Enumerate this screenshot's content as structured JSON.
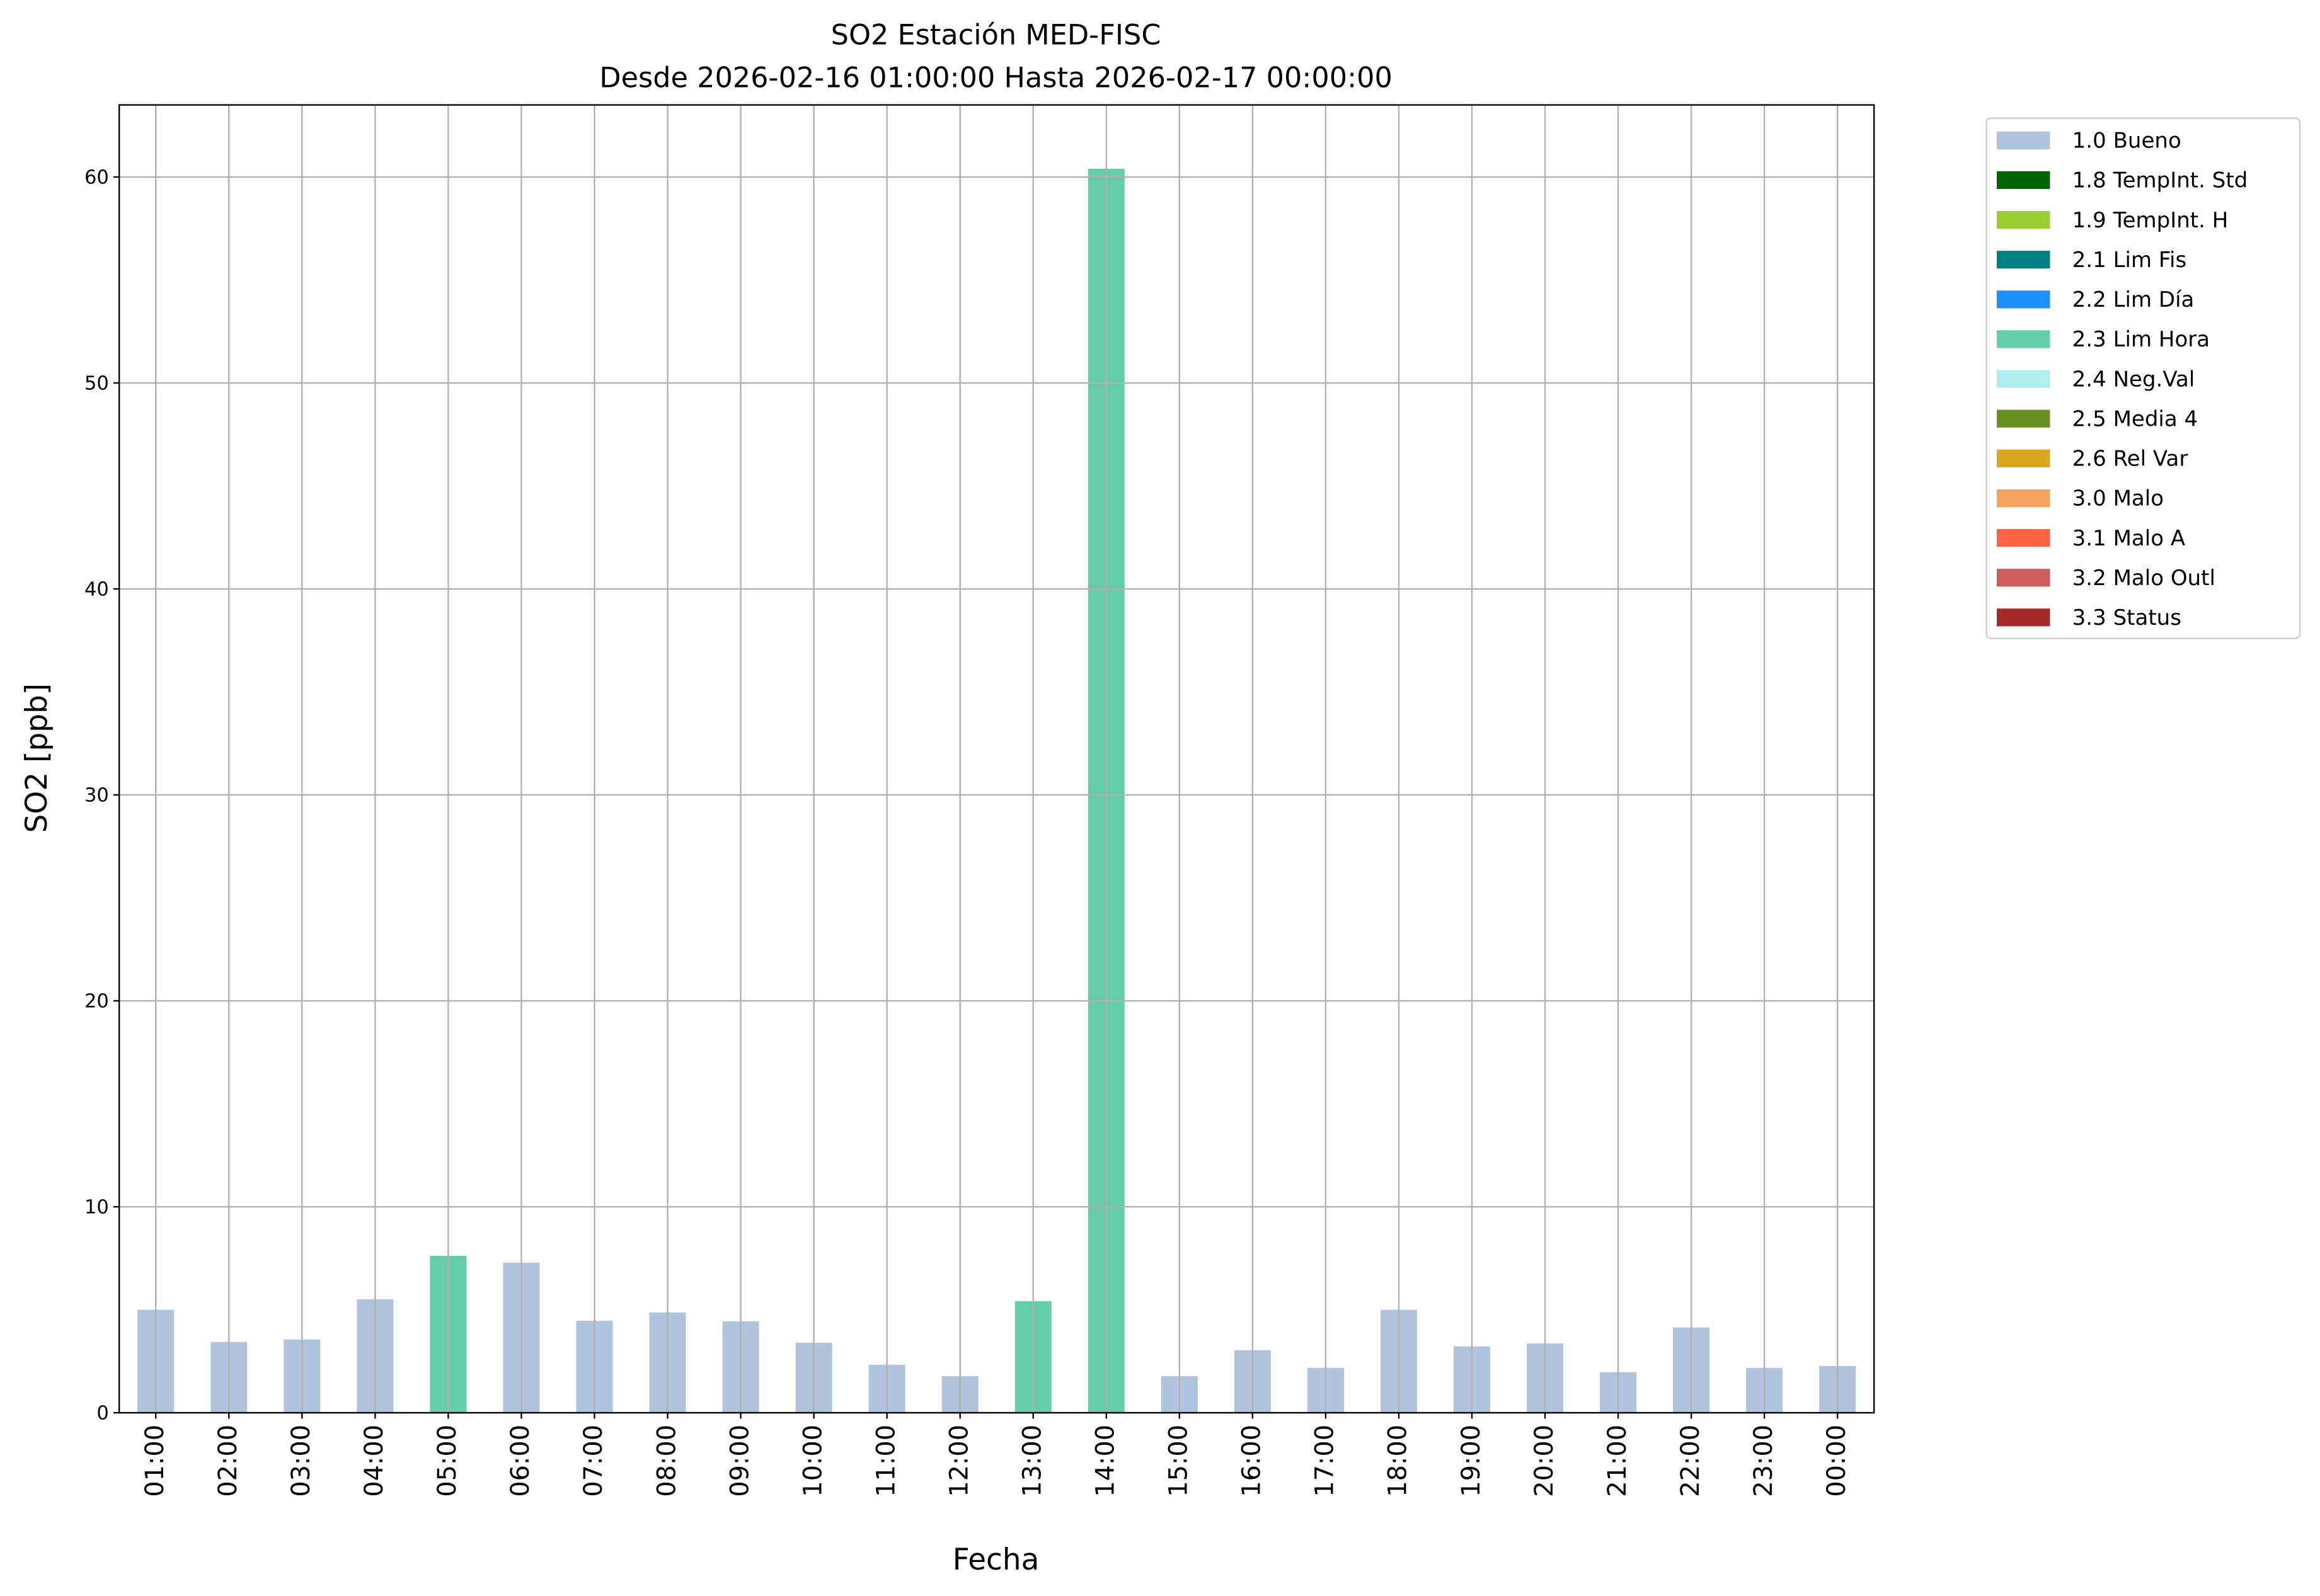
{
  "chart_data": {
    "type": "bar",
    "title": "SO2 Estación MED-FISC",
    "subtitle": "Desde 2026-02-16 01:00:00 Hasta 2026-02-17 00:00:00",
    "xlabel": "Fecha",
    "ylabel": "SO2 [ppb]",
    "ylim": [
      0,
      63.5
    ],
    "yticks": [
      0,
      10,
      20,
      30,
      40,
      50,
      60
    ],
    "grid": true,
    "legend_position": "outside-top-right",
    "categories": [
      "01:00",
      "02:00",
      "03:00",
      "04:00",
      "05:00",
      "06:00",
      "07:00",
      "08:00",
      "09:00",
      "10:00",
      "11:00",
      "12:00",
      "13:00",
      "14:00",
      "15:00",
      "16:00",
      "17:00",
      "18:00",
      "19:00",
      "20:00",
      "21:00",
      "22:00",
      "23:00",
      "00:00"
    ],
    "values": [
      5.0,
      3.44,
      3.56,
      5.51,
      7.62,
      7.29,
      4.47,
      4.87,
      4.44,
      3.4,
      2.33,
      1.78,
      5.42,
      60.4,
      1.78,
      3.04,
      2.18,
      5.0,
      3.22,
      3.37,
      1.97,
      4.14,
      2.18,
      2.27
    ],
    "flags": [
      "1.0 Bueno",
      "1.0 Bueno",
      "1.0 Bueno",
      "1.0 Bueno",
      "2.3 Lim Hora",
      "1.0 Bueno",
      "1.0 Bueno",
      "1.0 Bueno",
      "1.0 Bueno",
      "1.0 Bueno",
      "1.0 Bueno",
      "1.0 Bueno",
      "2.3 Lim Hora",
      "2.3 Lim Hora",
      "1.0 Bueno",
      "1.0 Bueno",
      "1.0 Bueno",
      "1.0 Bueno",
      "1.0 Bueno",
      "1.0 Bueno",
      "1.0 Bueno",
      "1.0 Bueno",
      "1.0 Bueno",
      "1.0 Bueno"
    ],
    "legend": [
      {
        "name": "1.0 Bueno",
        "color": "#b0c4de"
      },
      {
        "name": "1.8 TempInt. Std",
        "color": "#006400"
      },
      {
        "name": "1.9 TempInt. H",
        "color": "#9acd32"
      },
      {
        "name": "2.1 Lim Fis",
        "color": "#008080"
      },
      {
        "name": "2.2 Lim Día",
        "color": "#1e90ff"
      },
      {
        "name": "2.3 Lim Hora",
        "color": "#66cdaa"
      },
      {
        "name": "2.4 Neg.Val",
        "color": "#afeeee"
      },
      {
        "name": "2.5 Media 4",
        "color": "#6b8e23"
      },
      {
        "name": "2.6 Rel Var",
        "color": "#daa520"
      },
      {
        "name": "3.0 Malo",
        "color": "#f4a460"
      },
      {
        "name": "3.1 Malo A",
        "color": "#ff6347"
      },
      {
        "name": "3.2 Malo Outl",
        "color": "#cd5c5c"
      },
      {
        "name": "3.3 Status",
        "color": "#a52a2a"
      }
    ]
  }
}
